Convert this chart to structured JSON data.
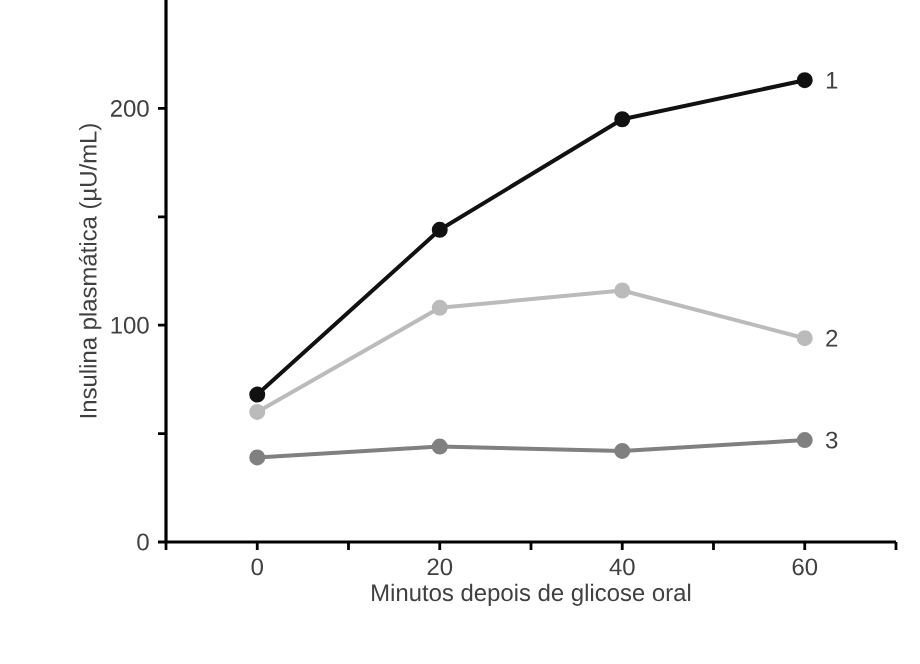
{
  "chart_data": {
    "type": "line",
    "xlabel": "Minutos depois de glicose oral",
    "ylabel": "Insulina plasmática (µU/mL)",
    "x": [
      0,
      20,
      40,
      60
    ],
    "series": [
      {
        "name": "1",
        "color": "#111111",
        "values": [
          68,
          144,
          195,
          213
        ]
      },
      {
        "name": "2",
        "color": "#bbbbbb",
        "values": [
          60,
          108,
          116,
          94
        ]
      },
      {
        "name": "3",
        "color": "#808080",
        "values": [
          39,
          44,
          42,
          47
        ]
      }
    ],
    "xlim": [
      -10,
      70
    ],
    "ylim": [
      0,
      250
    ],
    "xticks": [
      {
        "value": -10,
        "label": null
      },
      0,
      {
        "value": 10,
        "label": null
      },
      20,
      {
        "value": 30,
        "label": null
      },
      40,
      {
        "value": 50,
        "label": null
      },
      60,
      {
        "value": 70,
        "label": null
      }
    ],
    "yticks": [
      0,
      {
        "value": 50,
        "label": null
      },
      100,
      {
        "value": 150,
        "label": null
      },
      200
    ],
    "marker": "circle",
    "line_style": "solid",
    "legend": false
  }
}
